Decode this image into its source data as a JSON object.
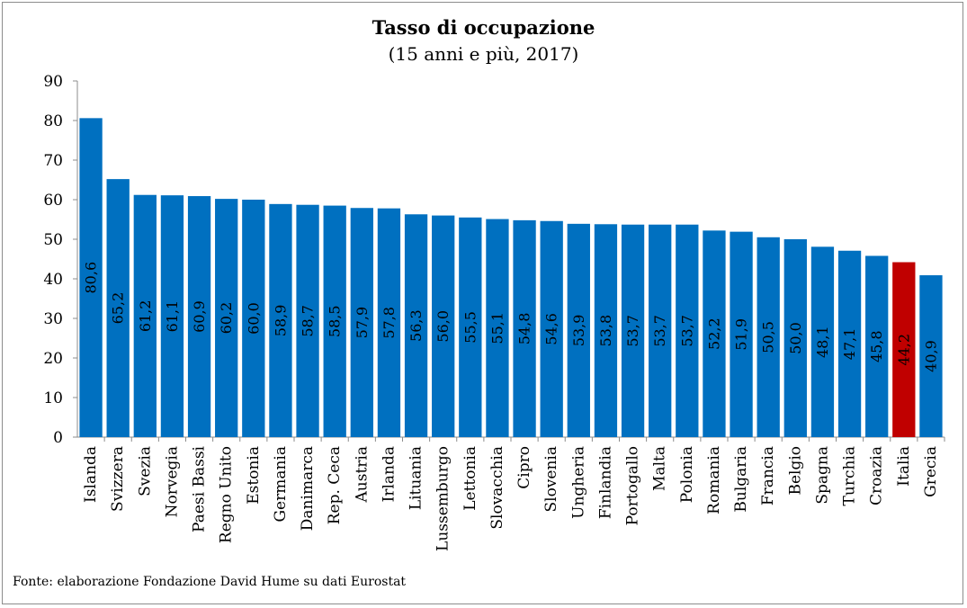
{
  "chart_data": {
    "type": "bar",
    "title": "Tasso di occupazione",
    "subtitle": "(15 anni e più, 2017)",
    "xlabel": "",
    "ylabel": "",
    "ylim": [
      0,
      90
    ],
    "yticks": [
      0,
      10,
      20,
      30,
      40,
      50,
      60,
      70,
      80,
      90
    ],
    "grid": false,
    "legend": "none",
    "categories": [
      "Islanda",
      "Svizzera",
      "Svezia",
      "Norvegia",
      "Paesi Bassi",
      "Regno Unito",
      "Estonia",
      "Germania",
      "Danimarca",
      "Rep. Ceca",
      "Austria",
      "Irlanda",
      "Lituania",
      "Lussemburgo",
      "Lettonia",
      "Slovacchia",
      "Cipro",
      "Slovenia",
      "Ungheria",
      "Finlandia",
      "Portogallo",
      "Malta",
      "Polonia",
      "Romania",
      "Bulgaria",
      "Francia",
      "Belgio",
      "Spagna",
      "Turchia",
      "Croazia",
      "Italia",
      "Grecia"
    ],
    "values": [
      80.6,
      65.2,
      61.2,
      61.1,
      60.9,
      60.2,
      60.0,
      58.9,
      58.7,
      58.5,
      57.9,
      57.8,
      56.3,
      56.0,
      55.5,
      55.1,
      54.8,
      54.6,
      53.9,
      53.8,
      53.7,
      53.7,
      53.7,
      52.2,
      51.9,
      50.5,
      50.0,
      48.1,
      47.1,
      45.8,
      44.2,
      40.9
    ],
    "value_labels": [
      "80,6",
      "65,2",
      "61,2",
      "61,1",
      "60,9",
      "60,2",
      "60,0",
      "58,9",
      "58,7",
      "58,5",
      "57,9",
      "57,8",
      "56,3",
      "56,0",
      "55,5",
      "55,1",
      "54,8",
      "54,6",
      "53,9",
      "53,8",
      "53,7",
      "53,7",
      "53,7",
      "52,2",
      "51,9",
      "50,5",
      "50,0",
      "48,1",
      "47,1",
      "45,8",
      "44,2",
      "40,9"
    ],
    "colors": {
      "default": "#0070C0",
      "highlight": "#C00000"
    },
    "highlight_category": "Italia"
  },
  "footer": {
    "source": "Fonte: elaborazione Fondazione David Hume su dati Eurostat"
  }
}
